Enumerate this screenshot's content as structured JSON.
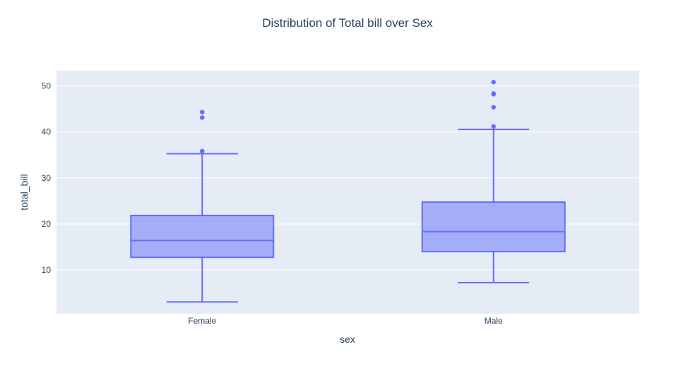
{
  "chart_data": {
    "type": "box",
    "title": "Distribution of Total bill over Sex",
    "xlabel": "sex",
    "ylabel": "total_bill",
    "categories": [
      "Female",
      "Male"
    ],
    "ylim": [
      0.5,
      53.3
    ],
    "yticks": [
      10,
      20,
      30,
      40,
      50
    ],
    "grid": true,
    "colors": {
      "plot_bg": "#e5ecf6",
      "grid": "#ffffff",
      "box_line": "#636efa",
      "box_fill": "rgba(99,110,250,0.5)",
      "text": "#2a3f5f"
    },
    "boxes": [
      {
        "category": "Female",
        "lower_whisker": 3.07,
        "q1": 12.75,
        "median": 16.4,
        "q3": 21.85,
        "upper_whisker": 35.26,
        "outliers": [
          35.83,
          43.11,
          44.3
        ]
      },
      {
        "category": "Male",
        "lower_whisker": 7.25,
        "q1": 14.0,
        "median": 18.35,
        "q3": 24.75,
        "upper_whisker": 40.55,
        "outliers": [
          41.19,
          45.35,
          48.17,
          48.27,
          48.33,
          50.81
        ]
      }
    ]
  }
}
